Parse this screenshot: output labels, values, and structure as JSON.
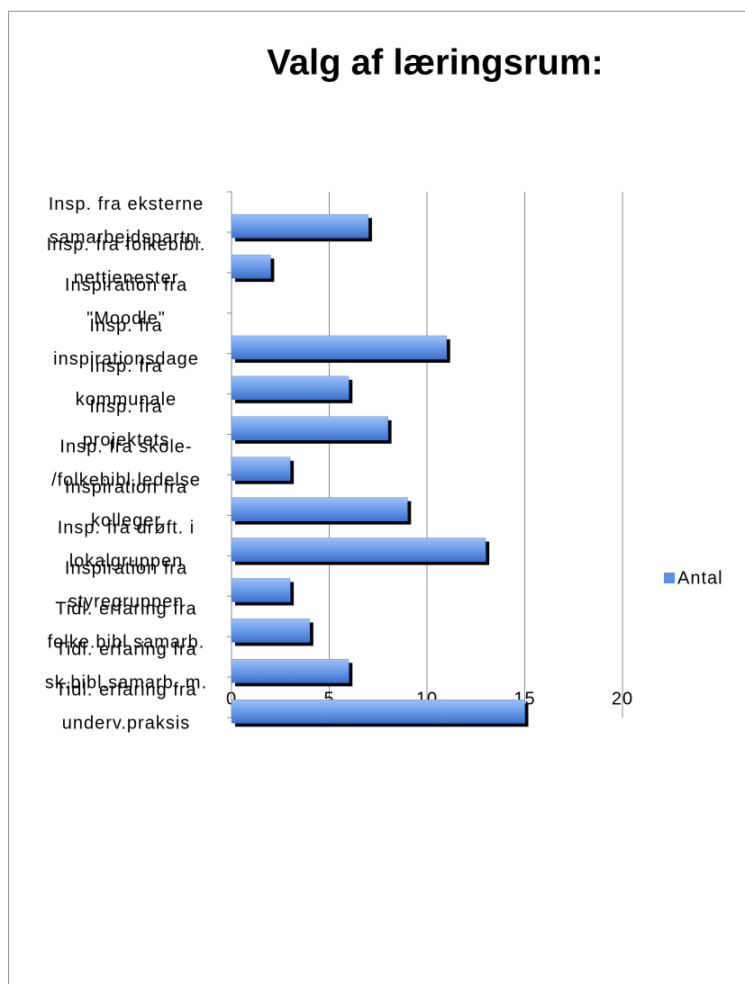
{
  "chart_data": {
    "type": "bar",
    "orientation": "horizontal",
    "title": "Valg af læringsrum:",
    "categories": [
      [
        "Insp. fra eksterne",
        "samarbejdspartn."
      ],
      [
        "Insp. fra folkebibl.",
        "nettjenester"
      ],
      [
        "Inspiration fra",
        "\"Moodle\""
      ],
      [
        "Insp. fra",
        "inspirationsdage"
      ],
      [
        "Insp. fra",
        "kommunale"
      ],
      [
        "Insp. fra",
        "projektets"
      ],
      [
        "Insp. fra skole-",
        "/folkebibl.ledelse"
      ],
      [
        "Inspiration fra",
        "kolleger"
      ],
      [
        "Insp. fra drøft. i",
        "lokalgruppen"
      ],
      [
        "Inspiration fra",
        "styregruppen"
      ],
      [
        "Tidl. erfaring fra",
        "folke.bibl.samarb."
      ],
      [
        "Tidl. erfaring fra",
        "sk.bibl.samarb. m."
      ],
      [
        "Tidl. erfaring fra",
        "underv.praksis"
      ]
    ],
    "series": [
      {
        "name": "Antal",
        "color": "#5b8fe6",
        "values": [
          7,
          2,
          0,
          11,
          6,
          8,
          3,
          9,
          13,
          3,
          4,
          6,
          15
        ]
      }
    ],
    "xlim": [
      0,
      20
    ],
    "xticks": [
      0,
      5,
      10,
      15,
      20
    ],
    "grid": true,
    "legend": "right"
  }
}
